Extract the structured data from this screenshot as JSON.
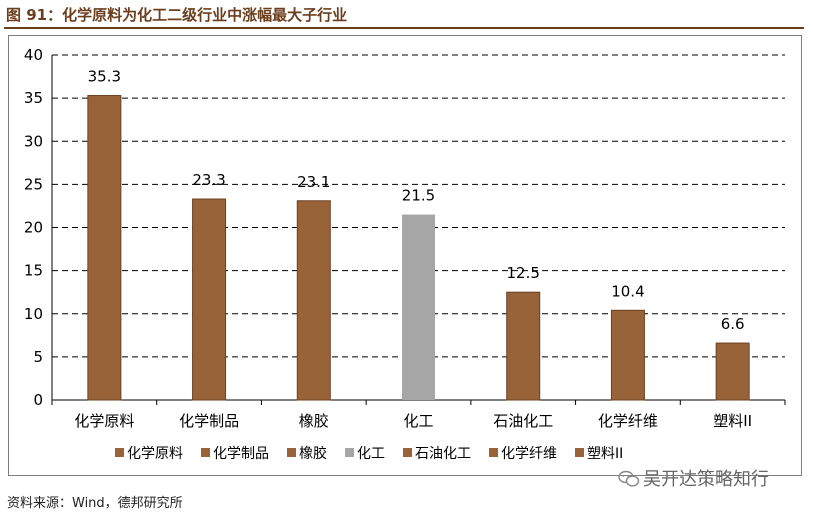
{
  "header": {
    "title": "图 91：化学原料为化工二级行业中涨幅最大子行业"
  },
  "footer": {
    "source": "资料来源：Wind，德邦研究所",
    "watermark": "吴开达策略知行"
  },
  "colors": {
    "bar": "#99633a",
    "bar_highlight": "#a6a6a6",
    "bar_stroke": "#6b4020",
    "title": "#6b3e1e",
    "grid": "#000000"
  },
  "chart_data": {
    "type": "bar",
    "title": "",
    "xlabel": "",
    "ylabel": "",
    "categories": [
      "化学原料",
      "化学制品",
      "橡胶",
      "化工",
      "石油化工",
      "化学纤维",
      "塑料II"
    ],
    "values": [
      35.3,
      23.3,
      23.1,
      21.5,
      12.5,
      10.4,
      6.6
    ],
    "data_labels": [
      "35.3",
      "23.3",
      "23.1",
      "21.5",
      "12.5",
      "10.4",
      "6.6"
    ],
    "highlight_category": "化工",
    "ylim": [
      0,
      40
    ],
    "yticks": [
      0,
      5,
      10,
      15,
      20,
      25,
      30,
      35,
      40
    ],
    "grid": true,
    "legend": {
      "position": "bottom",
      "entries": [
        "化学原料",
        "化学制品",
        "橡胶",
        "化工",
        "石油化工",
        "化学纤维",
        "塑料II"
      ]
    }
  }
}
